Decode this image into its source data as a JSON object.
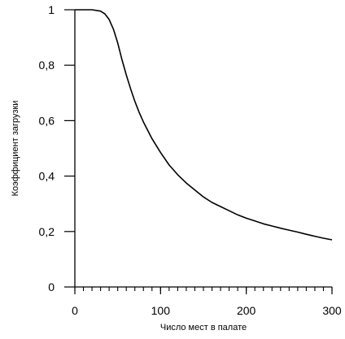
{
  "chart_data": {
    "type": "line",
    "xlabel": "Число мест в палате",
    "ylabel": "Коэффициент загрузки",
    "xlim": [
      0,
      300
    ],
    "ylim": [
      0,
      1
    ],
    "grid": false,
    "legend": "none",
    "x_ticks": [
      "0",
      "100",
      "200",
      "300"
    ],
    "y_ticks": [
      "0",
      "0,2",
      "0,4",
      "0,6",
      "0,8",
      "1"
    ],
    "x_tick_values": [
      0,
      100,
      200,
      300
    ],
    "y_tick_values": [
      0,
      0.2,
      0.4,
      0.6,
      0.8,
      1.0
    ],
    "x_minor_step": 10,
    "series": [
      {
        "color": "#000000",
        "x": [
          0,
          10,
          20,
          30,
          35,
          40,
          45,
          50,
          55,
          60,
          65,
          70,
          75,
          80,
          90,
          100,
          110,
          120,
          130,
          140,
          150,
          160,
          170,
          180,
          190,
          200,
          210,
          220,
          230,
          240,
          250,
          260,
          270,
          280,
          290,
          300
        ],
        "y": [
          1.0,
          1.0,
          1.0,
          0.995,
          0.985,
          0.965,
          0.93,
          0.88,
          0.82,
          0.765,
          0.715,
          0.67,
          0.63,
          0.595,
          0.535,
          0.485,
          0.44,
          0.405,
          0.375,
          0.35,
          0.325,
          0.305,
          0.29,
          0.275,
          0.26,
          0.248,
          0.238,
          0.228,
          0.22,
          0.212,
          0.205,
          0.198,
          0.19,
          0.183,
          0.176,
          0.17
        ]
      }
    ]
  }
}
